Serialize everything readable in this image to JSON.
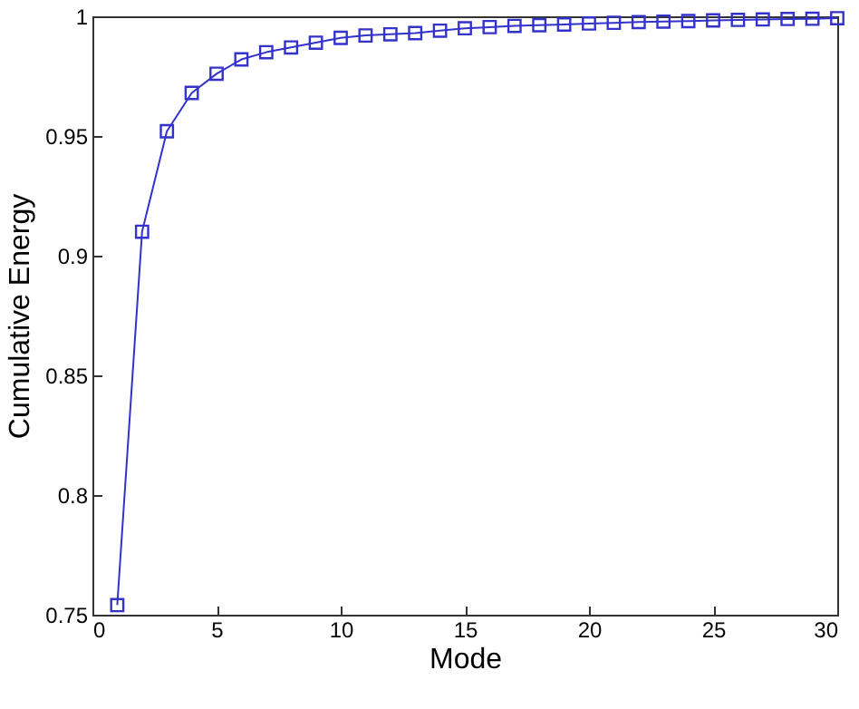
{
  "chart_data": {
    "type": "line",
    "xlabel": "Mode",
    "ylabel": "Cumulative Energy",
    "x": [
      1,
      2,
      3,
      4,
      5,
      6,
      7,
      8,
      9,
      10,
      11,
      12,
      13,
      14,
      15,
      16,
      17,
      18,
      19,
      20,
      21,
      22,
      23,
      24,
      25,
      26,
      27,
      28,
      29,
      30
    ],
    "series": [
      {
        "color": "#3333cc",
        "values": [
          0.754,
          0.91,
          0.952,
          0.968,
          0.976,
          0.982,
          0.985,
          0.987,
          0.989,
          0.991,
          0.992,
          0.9925,
          0.993,
          0.994,
          0.995,
          0.9955,
          0.996,
          0.9963,
          0.9966,
          0.997,
          0.9973,
          0.9976,
          0.9978,
          0.998,
          0.9983,
          0.9985,
          0.9987,
          0.9989,
          0.999,
          0.9992
        ]
      }
    ],
    "xlim": [
      0,
      30
    ],
    "xticks": [
      0,
      5,
      10,
      15,
      20,
      25,
      30
    ],
    "ylim": [
      0.75,
      1
    ],
    "yticks": [
      0.75,
      0.8,
      0.85,
      0.9,
      0.95,
      1
    ],
    "marker": "square",
    "line_style": "solid",
    "grid": false,
    "legend": false
  }
}
